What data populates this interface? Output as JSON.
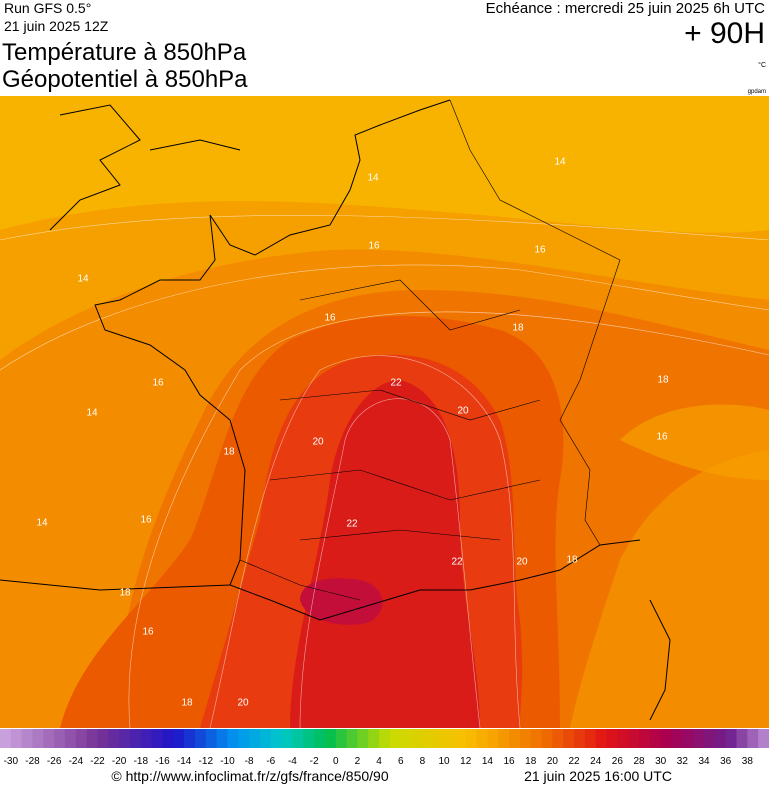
{
  "header": {
    "run": "Run GFS 0.5°",
    "run_date": "21 juin 2025 12Z",
    "title": "Température à 850hPa",
    "subtitle": "Géopotentiel à 850hPa",
    "forecast": "Echéance : mercredi 25 juin 2025 6h UTC",
    "lead": "+ 90H",
    "unit": "°C",
    "unit2": "gpdam"
  },
  "map": {
    "contour_labels": [
      14,
      14,
      16,
      16,
      14,
      16,
      18,
      16,
      22,
      14,
      20,
      18,
      16,
      20,
      18,
      16,
      14,
      22,
      22,
      20,
      18,
      18,
      16,
      18,
      20
    ]
  },
  "scale": {
    "lim": [
      -31,
      40
    ],
    "ticks": [
      -30,
      -28,
      -26,
      -24,
      -22,
      -20,
      -18,
      -16,
      -14,
      -12,
      -10,
      -8,
      -6,
      -4,
      -2,
      0,
      2,
      4,
      6,
      8,
      10,
      12,
      14,
      16,
      18,
      20,
      22,
      24,
      26,
      28,
      30,
      32,
      34,
      36,
      38
    ]
  },
  "footer": {
    "source": "© http://www.infoclimat.fr/z/gfs/france/850/90",
    "issued": "21 juin 2025 16:00 UTC"
  }
}
